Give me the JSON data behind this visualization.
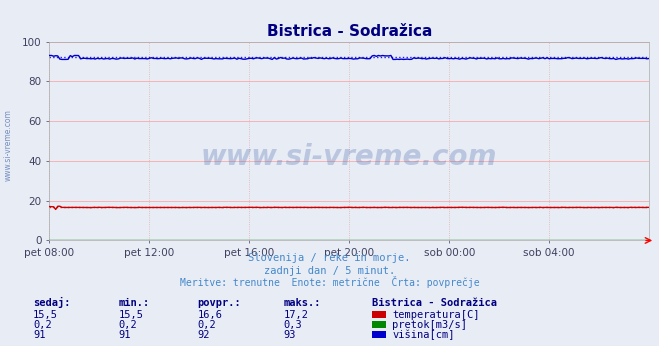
{
  "title": "Bistrica - Sodražica",
  "title_color": "#000080",
  "bg_color": "#e8ecf4",
  "plot_bg_color": "#e8ecf4",
  "grid_color_major_h": "#ff9999",
  "grid_color_v": "#ddaaaa",
  "ylabel_color": "#404060",
  "xlabel_color": "#404060",
  "ylim": [
    0,
    100
  ],
  "yticks": [
    0,
    20,
    40,
    60,
    80,
    100
  ],
  "xtick_labels": [
    "pet 08:00",
    "pet 12:00",
    "pet 16:00",
    "pet 20:00",
    "sob 00:00",
    "sob 04:00"
  ],
  "xtick_positions": [
    0,
    4,
    8,
    12,
    16,
    20
  ],
  "n_points": 289,
  "temp_color": "#cc0000",
  "flow_color": "#008800",
  "height_color": "#0000cc",
  "watermark": "www.si-vreme.com",
  "watermark_color": "#4466aa",
  "watermark_alpha": 0.28,
  "left_label": "www.si-vreme.com",
  "left_label_color": "#4466aa",
  "subtitle1": "Slovenija / reke in morje.",
  "subtitle2": "zadnji dan / 5 minut.",
  "subtitle3": "Meritve: trenutne  Enote: metrične  Črta: povprečje",
  "subtitle_color": "#4488cc",
  "legend_title": "Bistrica - Sodražica",
  "legend_title_color": "#000080",
  "table_headers": [
    "sedaj:",
    "min.:",
    "povpr.:",
    "maks.:"
  ],
  "table_data": [
    [
      "15,5",
      "15,5",
      "16,6",
      "17,2"
    ],
    [
      "0,2",
      "0,2",
      "0,2",
      "0,3"
    ],
    [
      "91",
      "91",
      "92",
      "93"
    ]
  ],
  "legend_items": [
    {
      "label": "temperatura[C]",
      "color": "#cc0000"
    },
    {
      "label": "pretok[m3/s]",
      "color": "#008800"
    },
    {
      "label": "višina[cm]",
      "color": "#0000cc"
    }
  ]
}
